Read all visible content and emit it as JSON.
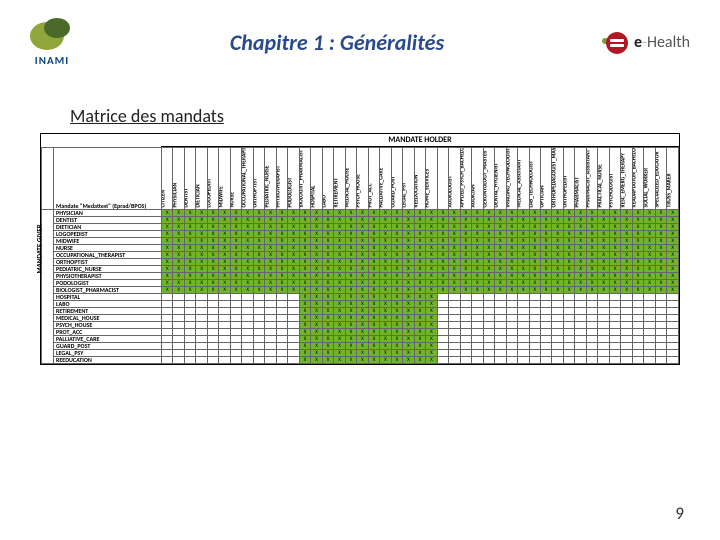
{
  "header": {
    "logo_left_text": "INAMI",
    "title": "Chapitre 1 : Généralités",
    "logo_right_html_a": "e",
    "logo_right_html_b": "Health"
  },
  "subtitle": "Matrice des mandats",
  "page_number": "9",
  "matrix": {
    "top_label": "MANDATE HOLDER",
    "side_label": "MANDATE GIVER",
    "corner_label": "Mandate \"Medattest\" (Eprad/BPOS)",
    "columns": [
      "CITIZEN",
      "PHYSICIAN",
      "DENTIST",
      "DIETICIAN",
      "LOGOPEDIST",
      "MIDWIFE",
      "NURSE",
      "OCCUPATIONAL_THERAPIST",
      "ORTHOPTIST",
      "PEDIATRIC_NURSE",
      "PHYSIOTHERAPIST",
      "PODOLOGIST",
      "BIOLOGIST_PHARMACIST",
      "HOSPITAL",
      "LABO",
      "RETIREMENT",
      "MEDICAL_HOUSE",
      "PSYCH_HOUSE",
      "PROT_ACC",
      "PALLIATIVE_CARE",
      "GUARD_POST",
      "LEGAL_PSY",
      "REEDUCATION",
      "HOME_SERVICES",
      "",
      "AUDIOLOGIST",
      "APPLIED_PSYCH_BACHELOR",
      "AUDICIAN",
      "GERONTOLOGY_MASTER",
      "DENTAL_HYGIENIST",
      "IMAGING_TECHNOLOGIST",
      "MEDICAL_ASSISTANT",
      "LAB_TECHNOLOGIST",
      "OPTICIAN",
      "ORTHOPEDAGOGIST_MASTER",
      "ORTHOPEDIST",
      "PHARMACIST",
      "PHARMACIST_ASSISTANT",
      "PRACTICAL_NURSE",
      "PSYCHOLOGIST",
      "RESC_EMERG_THERAPY",
      "READAPTATION_BACHELOR",
      "SOCIAL_WORKER",
      "SPECIALIZED_EDUCATOR",
      "TRUSS_MAKER"
    ],
    "rows": [
      {
        "label": "PHYSICIAN",
        "end": 45
      },
      {
        "label": "DENTIST",
        "end": 45
      },
      {
        "label": "DIETICIAN",
        "end": 45
      },
      {
        "label": "LOGOPEDIST",
        "end": 45
      },
      {
        "label": "MIDWIFE",
        "end": 45
      },
      {
        "label": "NURSE",
        "end": 45
      },
      {
        "label": "OCCUPATIONAL_THERAPIST",
        "end": 45
      },
      {
        "label": "ORTHOPTIST",
        "end": 45
      },
      {
        "label": "PEDIATRIC_NURSE",
        "end": 45
      },
      {
        "label": "PHYSIOTHERAPIST",
        "end": 45
      },
      {
        "label": "PODOLOGIST",
        "end": 45
      },
      {
        "label": "BIOLOGIST_PHARMACIST",
        "end": 45
      },
      {
        "label": "HOSPITAL",
        "end": 24
      },
      {
        "label": "LABO",
        "end": 24
      },
      {
        "label": "RETIREMENT",
        "end": 24
      },
      {
        "label": "MEDICAL_HOUSE",
        "end": 24
      },
      {
        "label": "PSYCH_HOUSE",
        "end": 24
      },
      {
        "label": "PROT_ACC",
        "end": 24
      },
      {
        "label": "PALLIATIVE_CARE",
        "end": 24
      },
      {
        "label": "GUARD_POST",
        "end": 24
      },
      {
        "label": "LEGAL_PSY",
        "end": 24
      },
      {
        "label": "REEDUCATION",
        "end": 24
      }
    ],
    "blank_start_col": 12,
    "colors": {
      "on": "#6fb52b",
      "off": "#ffffff"
    }
  }
}
